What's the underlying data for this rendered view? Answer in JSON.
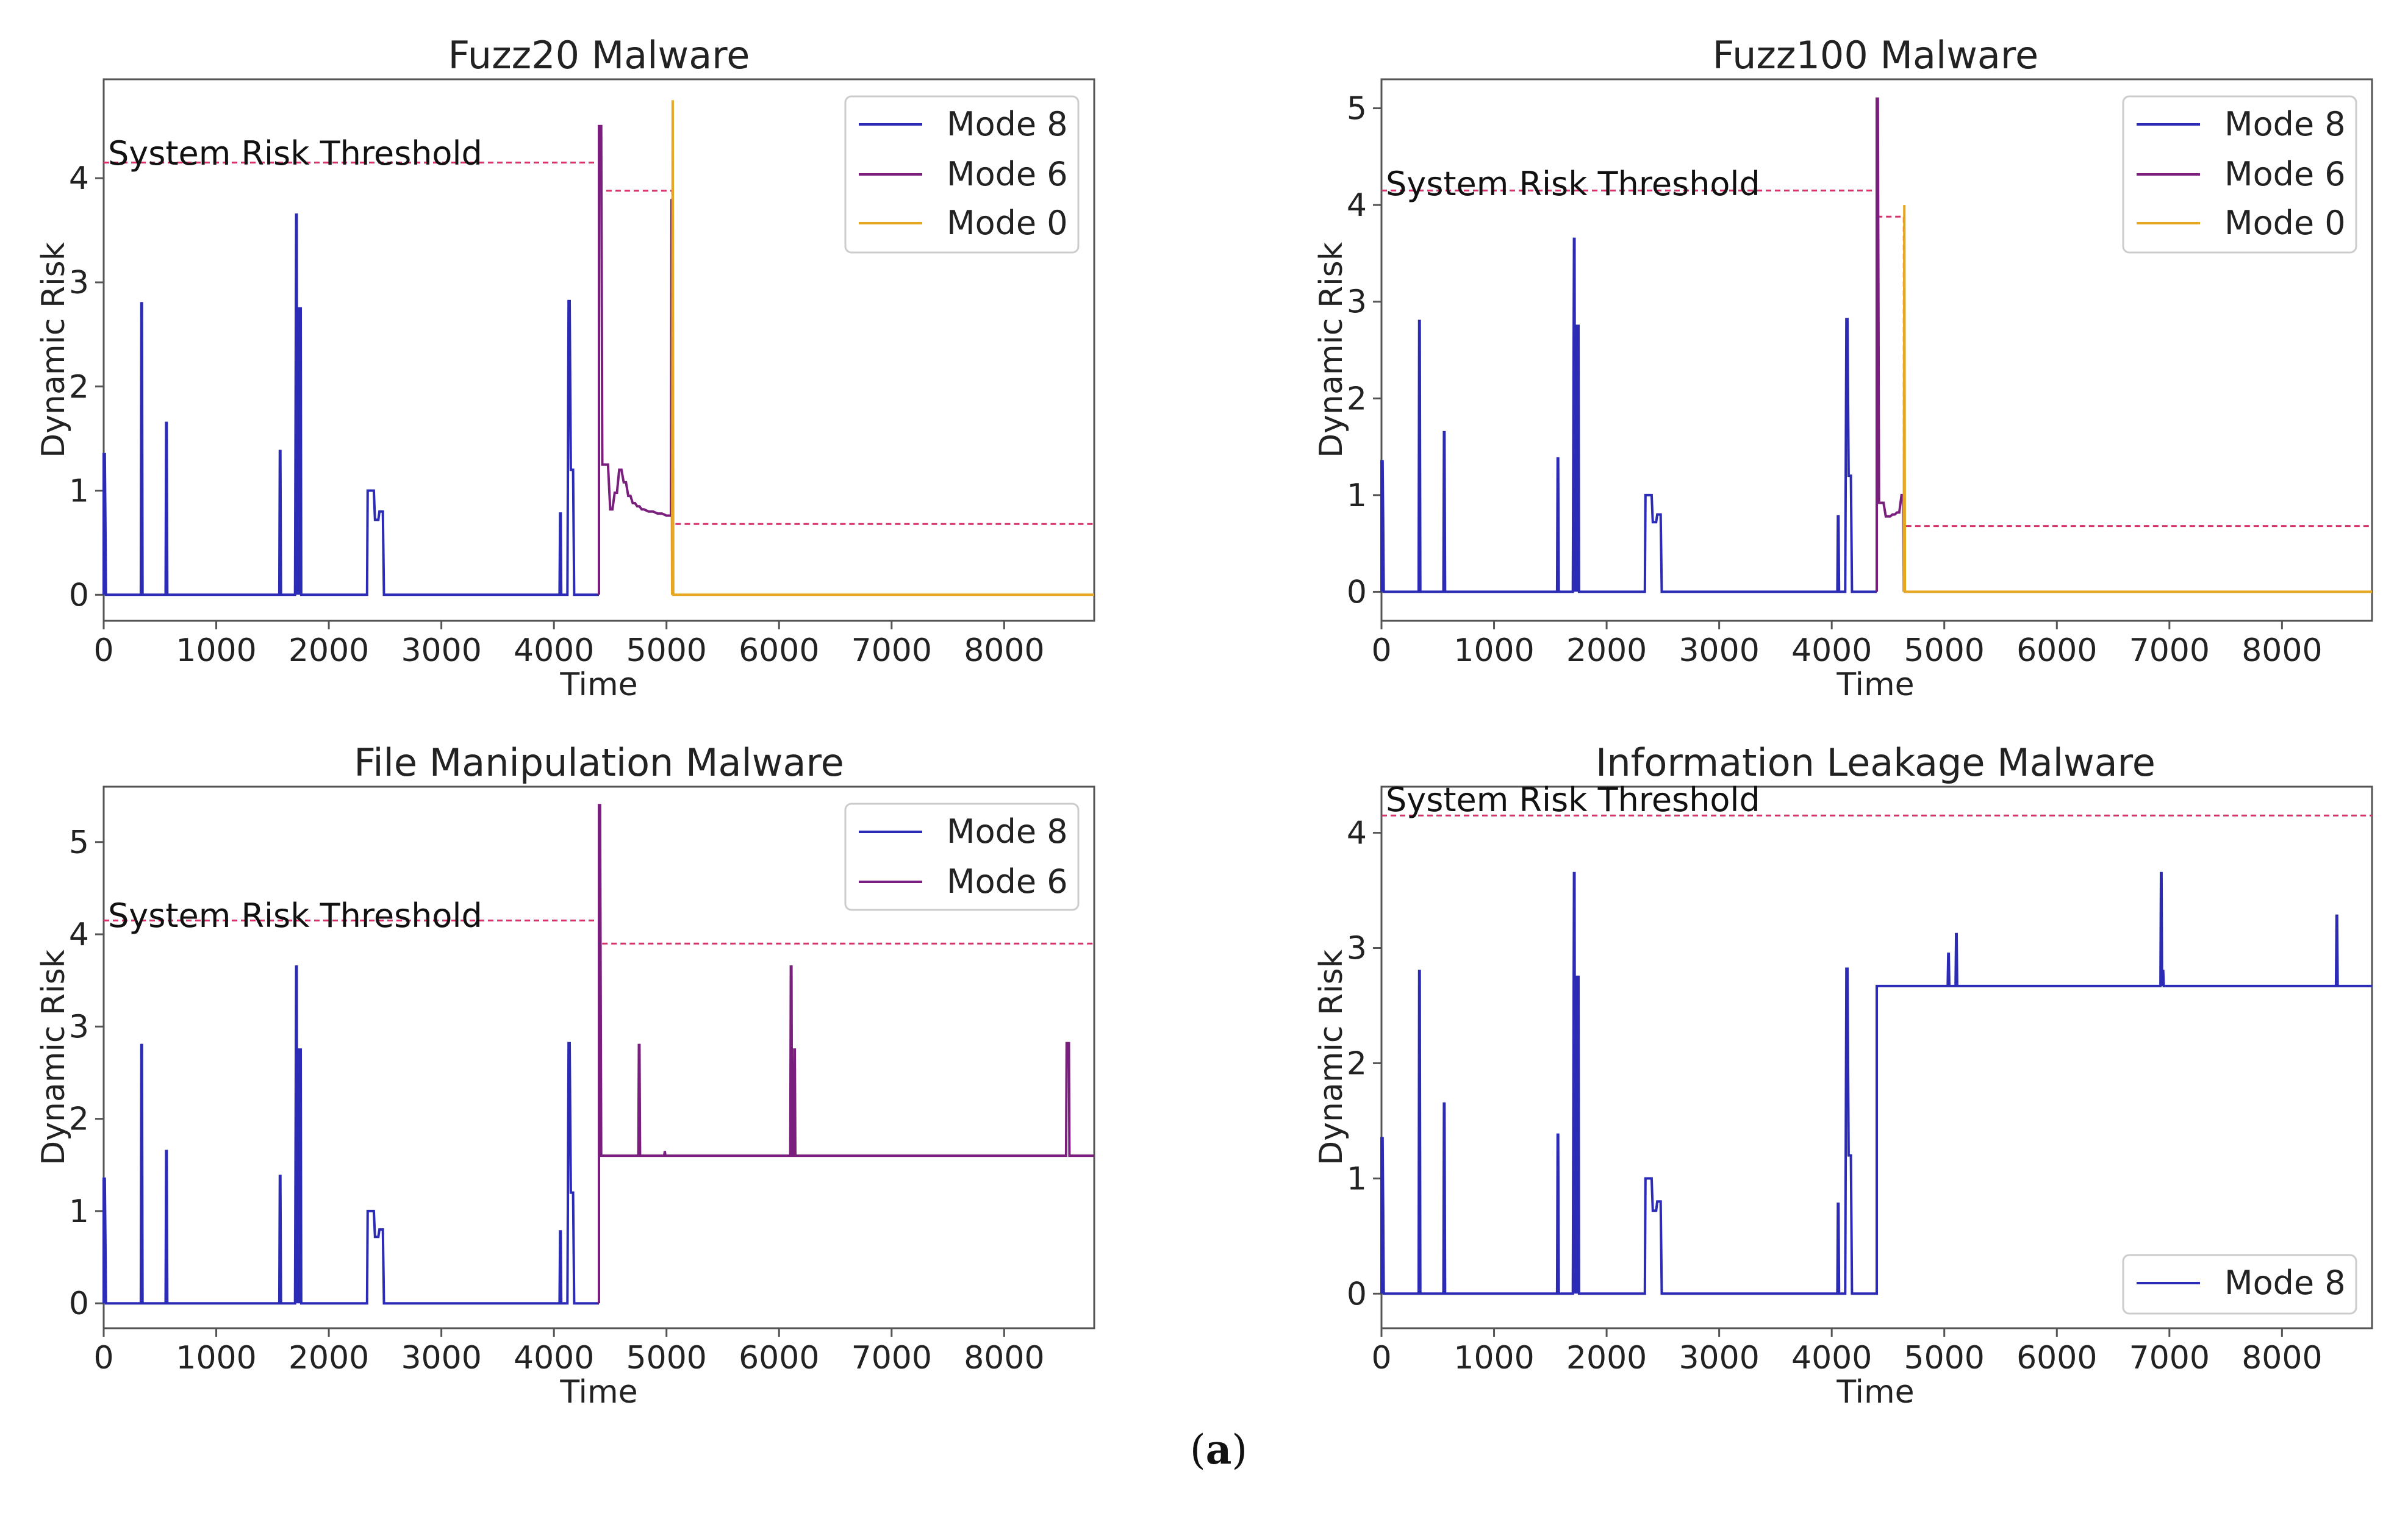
{
  "figure_caption_open": "(",
  "figure_caption_letter": "a",
  "figure_caption_close": ")",
  "colors": {
    "mode8": "#2b2bb5",
    "mode6": "#7a1f7d",
    "mode0": "#e6a722",
    "threshold": "#d6336c",
    "frame": "#555555"
  },
  "chart_data": [
    {
      "type": "line",
      "title": "Fuzz20 Malware",
      "xlabel": "Time",
      "ylabel": "Dynamic Risk",
      "xlim": [
        0,
        8800
      ],
      "ylim": [
        -0.25,
        4.95
      ],
      "xticks": [
        0,
        1000,
        2000,
        3000,
        4000,
        5000,
        6000,
        7000,
        8000
      ],
      "yticks": [
        0,
        1,
        2,
        3,
        4
      ],
      "annotation": "System Risk Threshold",
      "legend": [
        "Mode 8",
        "Mode 6",
        "Mode 0"
      ],
      "legend_position": "top-right",
      "threshold": [
        [
          0,
          4.15
        ],
        [
          4400,
          4.15
        ],
        [
          4400,
          3.88
        ],
        [
          5050,
          3.88
        ],
        [
          5050,
          0.68
        ],
        [
          8800,
          0.68
        ]
      ],
      "series": [
        {
          "name": "Mode 8",
          "key": "mode8",
          "x": [
            0,
            0,
            10,
            15,
            20,
            330,
            335,
            340,
            345,
            550,
            555,
            560,
            565,
            1560,
            1565,
            1570,
            1575,
            1700,
            1710,
            1715,
            1720,
            1725,
            1730,
            1735,
            1740,
            1750,
            1755,
            2340,
            2345,
            2400,
            2410,
            2440,
            2450,
            2480,
            2490,
            4050,
            4055,
            4060,
            4065,
            4120,
            4130,
            4140,
            4150,
            4170,
            4180,
            4400
          ],
          "y": [
            0,
            1.35,
            1.35,
            0.72,
            0,
            0,
            2.8,
            2.8,
            0,
            0,
            1.65,
            1.65,
            0,
            0,
            1.38,
            1.38,
            0,
            0,
            3.65,
            3.65,
            0,
            2.75,
            2.75,
            0,
            2.75,
            2.75,
            0,
            0,
            1.0,
            1.0,
            0.72,
            0.72,
            0.8,
            0.8,
            0,
            0,
            0.78,
            0.78,
            0,
            0,
            2.82,
            2.82,
            1.2,
            1.2,
            0,
            0
          ]
        },
        {
          "name": "Mode 6",
          "key": "mode6",
          "x": [
            4400,
            4400,
            4420,
            4430,
            4480,
            4500,
            4520,
            4540,
            4560,
            4580,
            4600,
            4620,
            4640,
            4660,
            4680,
            4700,
            4720,
            4740,
            4760,
            4780,
            4800,
            4840,
            4880,
            4920,
            4960,
            5000,
            5040,
            5045,
            5050
          ],
          "y": [
            0,
            4.5,
            4.5,
            1.25,
            1.25,
            0.82,
            0.82,
            0.98,
            0.98,
            1.2,
            1.2,
            1.08,
            1.08,
            0.95,
            0.95,
            0.88,
            0.88,
            0.85,
            0.85,
            0.82,
            0.82,
            0.8,
            0.8,
            0.78,
            0.78,
            0.76,
            0.76,
            3.8,
            0
          ]
        },
        {
          "name": "Mode 0",
          "key": "mode0",
          "x": [
            5050,
            5055,
            5060,
            8800
          ],
          "y": [
            0,
            4.75,
            0,
            0
          ]
        }
      ]
    },
    {
      "type": "line",
      "title": "Fuzz100 Malware",
      "xlabel": "Time",
      "ylabel": "Dynamic Risk",
      "xlim": [
        0,
        8800
      ],
      "ylim": [
        -0.3,
        5.3
      ],
      "xticks": [
        0,
        1000,
        2000,
        3000,
        4000,
        5000,
        6000,
        7000,
        8000
      ],
      "yticks": [
        0,
        1,
        2,
        3,
        4,
        5
      ],
      "annotation": "System Risk Threshold",
      "legend": [
        "Mode 8",
        "Mode 6",
        "Mode 0"
      ],
      "legend_position": "top-right",
      "threshold": [
        [
          0,
          4.15
        ],
        [
          4400,
          4.15
        ],
        [
          4400,
          3.88
        ],
        [
          4640,
          3.88
        ],
        [
          4640,
          0.68
        ],
        [
          8800,
          0.68
        ]
      ],
      "series": [
        {
          "name": "Mode 8",
          "key": "mode8",
          "x": [
            0,
            0,
            10,
            15,
            20,
            330,
            335,
            340,
            345,
            550,
            555,
            560,
            565,
            1560,
            1565,
            1570,
            1575,
            1700,
            1710,
            1715,
            1720,
            1725,
            1730,
            1735,
            1740,
            1750,
            1755,
            2340,
            2345,
            2400,
            2410,
            2440,
            2450,
            2480,
            2490,
            4050,
            4055,
            4060,
            4065,
            4120,
            4130,
            4140,
            4150,
            4170,
            4180,
            4400
          ],
          "y": [
            0,
            1.35,
            1.35,
            0.72,
            0,
            0,
            2.8,
            2.8,
            0,
            0,
            1.65,
            1.65,
            0,
            0,
            1.38,
            1.38,
            0,
            0,
            3.65,
            3.65,
            0,
            2.75,
            2.75,
            0,
            2.75,
            2.75,
            0,
            0,
            1.0,
            1.0,
            0.72,
            0.72,
            0.8,
            0.8,
            0,
            0,
            0.78,
            0.78,
            0,
            0,
            2.82,
            2.82,
            1.2,
            1.2,
            0,
            0
          ]
        },
        {
          "name": "Mode 6",
          "key": "mode6",
          "x": [
            4400,
            4400,
            4410,
            4420,
            4460,
            4480,
            4520,
            4540,
            4560,
            4580,
            4600,
            4620,
            4635,
            4640
          ],
          "y": [
            0,
            5.1,
            5.1,
            0.92,
            0.92,
            0.78,
            0.78,
            0.8,
            0.8,
            0.82,
            0.82,
            1.0,
            1.0,
            0
          ]
        },
        {
          "name": "Mode 0",
          "key": "mode0",
          "x": [
            4640,
            4645,
            4650,
            8800
          ],
          "y": [
            0,
            4.0,
            0,
            0
          ]
        }
      ]
    },
    {
      "type": "line",
      "title": "File Manipulation Malware",
      "xlabel": "Time",
      "ylabel": "Dynamic Risk",
      "xlim": [
        0,
        8800
      ],
      "ylim": [
        -0.27,
        5.6
      ],
      "xticks": [
        0,
        1000,
        2000,
        3000,
        4000,
        5000,
        6000,
        7000,
        8000
      ],
      "yticks": [
        0,
        1,
        2,
        3,
        4,
        5
      ],
      "annotation": "System Risk Threshold",
      "legend": [
        "Mode 8",
        "Mode 6"
      ],
      "legend_position": "top-right",
      "threshold": [
        [
          0,
          4.15
        ],
        [
          4400,
          4.15
        ],
        [
          4400,
          3.9
        ],
        [
          8800,
          3.9
        ]
      ],
      "series": [
        {
          "name": "Mode 8",
          "key": "mode8",
          "x": [
            0,
            0,
            10,
            15,
            20,
            330,
            335,
            340,
            345,
            550,
            555,
            560,
            565,
            1560,
            1565,
            1570,
            1575,
            1700,
            1710,
            1715,
            1720,
            1725,
            1730,
            1735,
            1740,
            1750,
            1755,
            2340,
            2345,
            2400,
            2410,
            2440,
            2450,
            2480,
            2490,
            4050,
            4055,
            4060,
            4065,
            4120,
            4130,
            4140,
            4150,
            4170,
            4180,
            4400
          ],
          "y": [
            0,
            1.35,
            1.35,
            0.72,
            0,
            0,
            2.8,
            2.8,
            0,
            0,
            1.65,
            1.65,
            0,
            0,
            1.38,
            1.38,
            0,
            0,
            3.65,
            3.65,
            0,
            2.75,
            2.75,
            0,
            2.75,
            2.75,
            0,
            0,
            1.0,
            1.0,
            0.72,
            0.72,
            0.8,
            0.8,
            0,
            0,
            0.78,
            0.78,
            0,
            0,
            2.82,
            2.82,
            1.2,
            1.2,
            0,
            0
          ]
        },
        {
          "name": "Mode 6",
          "key": "mode6",
          "x": [
            4400,
            4400,
            4410,
            4420,
            4750,
            4755,
            4760,
            4765,
            4980,
            4985,
            4990,
            6100,
            6105,
            6110,
            6115,
            6130,
            6135,
            6140,
            6145,
            8550,
            8555,
            8575,
            8580,
            8800
          ],
          "y": [
            0,
            5.4,
            5.4,
            1.6,
            1.6,
            2.8,
            2.8,
            1.6,
            1.6,
            1.65,
            1.6,
            1.6,
            3.65,
            3.65,
            1.6,
            1.6,
            2.75,
            2.75,
            1.6,
            1.6,
            2.82,
            2.82,
            1.6,
            1.6
          ]
        }
      ]
    },
    {
      "type": "line",
      "title": "Information Leakage Malware",
      "xlabel": "Time",
      "ylabel": "Dynamic Risk",
      "xlim": [
        0,
        8800
      ],
      "ylim": [
        -0.3,
        4.4
      ],
      "xticks": [
        0,
        1000,
        2000,
        3000,
        4000,
        5000,
        6000,
        7000,
        8000
      ],
      "yticks": [
        0,
        1,
        2,
        3,
        4
      ],
      "annotation": "System Risk Threshold",
      "legend": [
        "Mode 8"
      ],
      "legend_position": "bottom-right",
      "threshold": [
        [
          0,
          4.15
        ],
        [
          8800,
          4.15
        ]
      ],
      "series": [
        {
          "name": "Mode 8",
          "key": "mode8",
          "x": [
            0,
            0,
            10,
            15,
            20,
            330,
            335,
            340,
            345,
            550,
            555,
            560,
            565,
            1560,
            1565,
            1570,
            1575,
            1700,
            1710,
            1715,
            1720,
            1725,
            1730,
            1735,
            1740,
            1750,
            1755,
            2340,
            2345,
            2400,
            2410,
            2440,
            2450,
            2480,
            2490,
            4050,
            4055,
            4060,
            4065,
            4120,
            4130,
            4140,
            4150,
            4170,
            4180,
            4400,
            4400,
            5030,
            5035,
            5040,
            5045,
            5100,
            5105,
            5110,
            5115,
            6920,
            6925,
            6930,
            6935,
            6940,
            6945,
            6950,
            6955,
            8480,
            8485,
            8490,
            8495,
            8800
          ],
          "y": [
            0,
            1.35,
            1.35,
            0.72,
            0,
            0,
            2.8,
            2.8,
            0,
            0,
            1.65,
            1.65,
            0,
            0,
            1.38,
            1.38,
            0,
            0,
            3.65,
            3.65,
            0,
            2.75,
            2.75,
            0,
            2.75,
            2.75,
            0,
            0,
            1.0,
            1.0,
            0.72,
            0.72,
            0.8,
            0.8,
            0,
            0,
            0.78,
            0.78,
            0,
            0,
            2.82,
            2.82,
            1.2,
            1.2,
            0,
            0,
            2.67,
            2.67,
            2.95,
            2.95,
            2.67,
            2.67,
            3.12,
            3.12,
            2.67,
            2.67,
            3.65,
            3.65,
            2.67,
            2.8,
            2.8,
            2.67,
            2.67,
            2.67,
            3.28,
            3.28,
            2.67,
            2.67
          ]
        }
      ]
    }
  ]
}
